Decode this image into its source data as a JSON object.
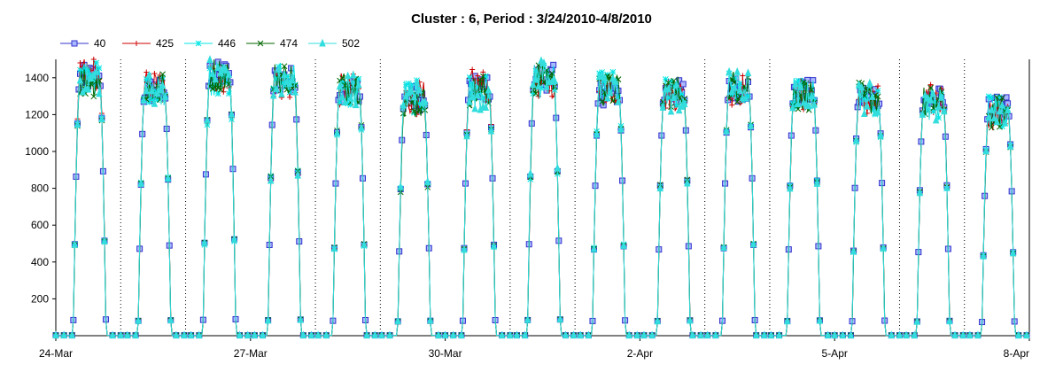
{
  "chart_data": {
    "type": "line",
    "title": "Cluster : 6, Period : 3/24/2010-4/8/2010",
    "xlabel": "",
    "ylabel": "",
    "x_range": [
      "2010-03-24",
      "2010-04-08"
    ],
    "ylim": [
      0,
      1500
    ],
    "y_ticks": [
      200,
      400,
      600,
      800,
      1000,
      1200,
      1400
    ],
    "x_ticks": [
      {
        "date": "2010-03-24",
        "label": "24-Mar"
      },
      {
        "date": "2010-03-27",
        "label": "27-Mar"
      },
      {
        "date": "2010-03-30",
        "label": "30-Mar"
      },
      {
        "date": "2010-04-02",
        "label": "2-Apr"
      },
      {
        "date": "2010-04-05",
        "label": "5-Apr"
      },
      {
        "date": "2010-04-08",
        "label": "8-Apr"
      }
    ],
    "grid": "vertical dotted lines at day boundaries",
    "legend_position": "top-left",
    "series": [
      {
        "name": "40",
        "color": "#3333cc",
        "marker": "square"
      },
      {
        "name": "425",
        "color": "#cc0000",
        "marker": "plus"
      },
      {
        "name": "446",
        "color": "#00e5e5",
        "marker": "asterisk"
      },
      {
        "name": "474",
        "color": "#006600",
        "marker": "x"
      },
      {
        "name": "502",
        "color": "#33dddd",
        "marker": "triangle"
      }
    ],
    "daily_peaks": [
      {
        "date": "2010-03-24",
        "series_40_peak": 1400
      },
      {
        "date": "2010-03-25",
        "series_40_peak": 1330
      },
      {
        "date": "2010-03-26",
        "series_40_peak": 1420
      },
      {
        "date": "2010-03-27",
        "series_40_peak": 1390
      },
      {
        "date": "2010-03-28",
        "series_40_peak": 1340
      },
      {
        "date": "2010-03-29",
        "series_40_peak": 1290
      },
      {
        "date": "2010-03-30",
        "series_40_peak": 1340
      },
      {
        "date": "2010-03-31",
        "series_40_peak": 1400
      },
      {
        "date": "2010-04-01",
        "series_40_peak": 1320
      },
      {
        "date": "2010-04-02",
        "series_40_peak": 1320
      },
      {
        "date": "2010-04-03",
        "series_40_peak": 1340
      },
      {
        "date": "2010-04-04",
        "series_40_peak": 1320
      },
      {
        "date": "2010-04-05",
        "series_40_peak": 1300
      },
      {
        "date": "2010-04-06",
        "series_40_peak": 1280
      },
      {
        "date": "2010-04-07",
        "series_40_peak": 1230
      }
    ]
  }
}
